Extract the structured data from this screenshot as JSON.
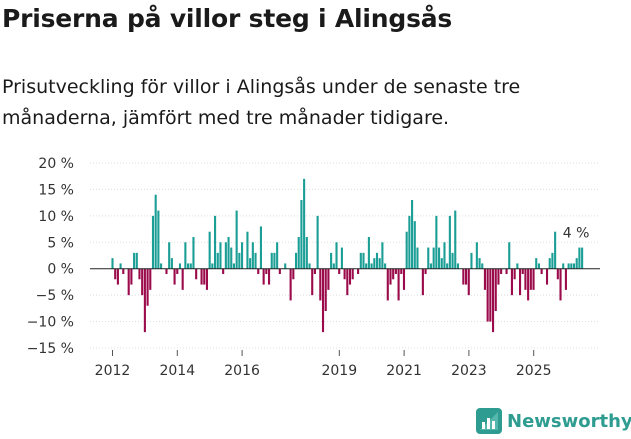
{
  "title": "Priserna på villor steg i Alingsås",
  "subtitle": "Prisutveckling för villor i Alingsås under de senaste tre månaderna, jämfört med tre månader tidigare.",
  "brand": "Newsworthy",
  "colors": {
    "positive": "#1a9e95",
    "negative": "#9b0a4a",
    "axis": "#222222",
    "grid": "#dddddd",
    "brand": "#2e9c90"
  },
  "chart_data": {
    "type": "bar",
    "title": "Priserna på villor steg i Alingsås",
    "ylabel": "",
    "xlabel": "",
    "ylim": [
      -15,
      20
    ],
    "yticks": [
      20,
      15,
      10,
      5,
      0,
      -5,
      -10,
      -15
    ],
    "ytick_labels": [
      "20 %",
      "15 %",
      "10 %",
      "5 %",
      "0 %",
      "−5 %",
      "−10 %",
      "−15 %"
    ],
    "x_start": 2012.0,
    "step": 0.0833,
    "xticks": [
      2012,
      2014,
      2016,
      2019,
      2021,
      2023,
      2025
    ],
    "last_value_label": "4 %",
    "values": [
      2,
      -2,
      -3,
      1,
      -1,
      0,
      -5,
      -3,
      3,
      3,
      -2,
      -5,
      -12,
      -7,
      -4,
      10,
      14,
      11,
      1,
      0,
      -1,
      5,
      2,
      -3,
      -1,
      1,
      -4,
      5,
      1,
      1,
      6,
      -2,
      0,
      -3,
      -3,
      -4,
      7,
      1,
      10,
      3,
      5,
      -1,
      5,
      6,
      4,
      1,
      11,
      3,
      5,
      0,
      7,
      2,
      5,
      3,
      -1,
      8,
      -3,
      -1,
      -3,
      3,
      3,
      5,
      -1,
      0,
      1,
      0,
      -6,
      -2,
      3,
      6,
      13,
      17,
      6,
      1,
      -5,
      -1,
      10,
      -6,
      -12,
      -8,
      -4,
      3,
      1,
      5,
      -1,
      4,
      -2,
      -5,
      -3,
      -2,
      0,
      -1,
      3,
      3,
      1,
      6,
      1,
      2,
      3,
      2,
      5,
      1,
      -6,
      -3,
      -2,
      -1,
      -6,
      -1,
      -4,
      7,
      10,
      13,
      9,
      4,
      0,
      -5,
      -1,
      4,
      1,
      4,
      10,
      4,
      2,
      5,
      1,
      10,
      3,
      11,
      1,
      0,
      -3,
      -3,
      -5,
      3,
      0,
      5,
      2,
      1,
      -4,
      -10,
      -10,
      -12,
      -8,
      -3,
      -1,
      0,
      -1,
      5,
      -5,
      -2,
      1,
      -5,
      -1,
      -4,
      -6,
      -4,
      -4,
      2,
      1,
      -1,
      0,
      -3,
      2,
      3,
      7,
      -2,
      -6,
      1,
      -4,
      1,
      1,
      1,
      2,
      4,
      4
    ],
    "bar_colors": {
      "positive": "#1a9e95",
      "negative": "#9b0a4a"
    }
  }
}
